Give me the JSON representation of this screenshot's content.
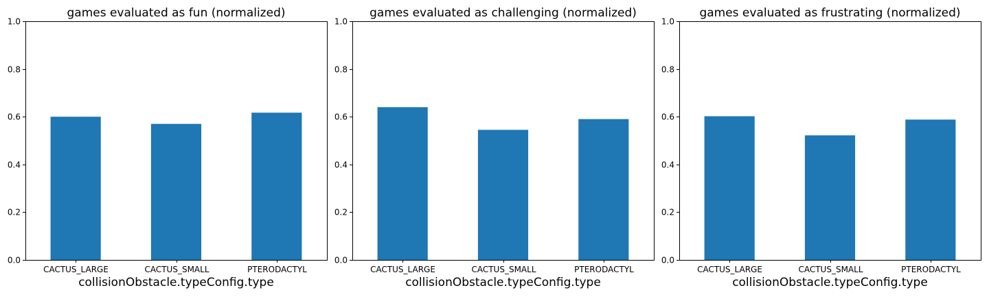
{
  "chart_data": [
    {
      "type": "bar",
      "title": "games evaluated as fun (normalized)",
      "xlabel": "collisionObstacle.typeConfig.type",
      "ylabel": "",
      "categories": [
        "CACTUS_LARGE",
        "CACTUS_SMALL",
        "PTERODACTYL"
      ],
      "values": [
        0.6,
        0.57,
        0.617
      ],
      "ylim": [
        0,
        1.0
      ],
      "yticks": [
        "0.0",
        "0.2",
        "0.4",
        "0.6",
        "0.8",
        "1.0"
      ],
      "bar_color": "#1f77b4",
      "grid": false
    },
    {
      "type": "bar",
      "title": "games evaluated as challenging (normalized)",
      "xlabel": "collisionObstacle.typeConfig.type",
      "ylabel": "",
      "categories": [
        "CACTUS_LARGE",
        "CACTUS_SMALL",
        "PTERODACTYL"
      ],
      "values": [
        0.64,
        0.545,
        0.59
      ],
      "ylim": [
        0,
        1.0
      ],
      "yticks": [
        "0.0",
        "0.2",
        "0.4",
        "0.6",
        "0.8",
        "1.0"
      ],
      "bar_color": "#1f77b4",
      "grid": false
    },
    {
      "type": "bar",
      "title": "games evaluated as frustrating (normalized)",
      "xlabel": "collisionObstacle.typeConfig.type",
      "ylabel": "",
      "categories": [
        "CACTUS_LARGE",
        "CACTUS_SMALL",
        "PTERODACTYL"
      ],
      "values": [
        0.602,
        0.522,
        0.588
      ],
      "ylim": [
        0,
        1.0
      ],
      "yticks": [
        "0.0",
        "0.2",
        "0.4",
        "0.6",
        "0.8",
        "1.0"
      ],
      "bar_color": "#1f77b4",
      "grid": false
    }
  ]
}
